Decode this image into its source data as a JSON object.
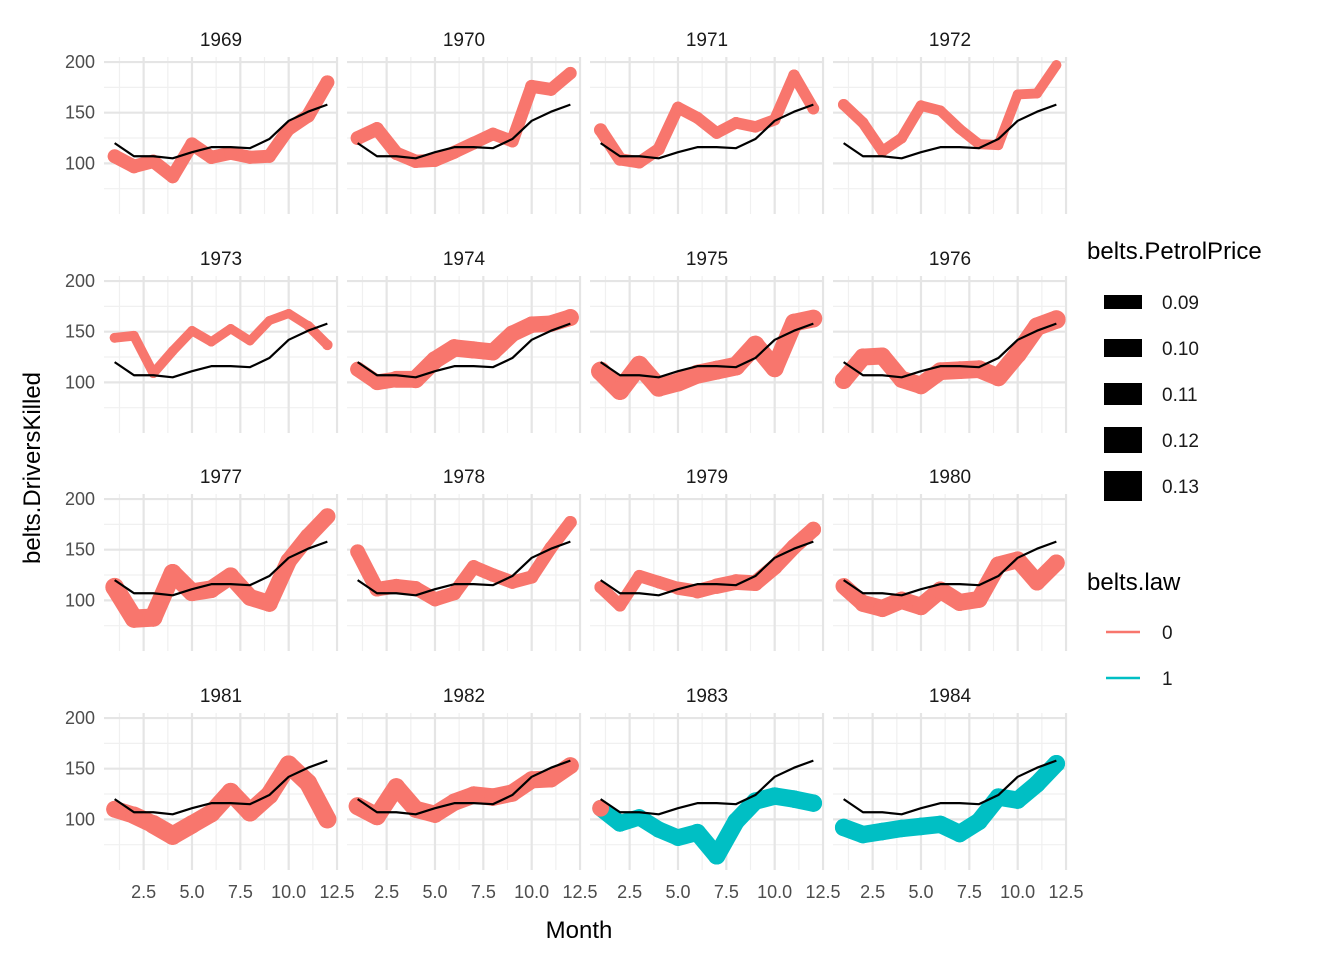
{
  "chart_data": {
    "type": "line",
    "facet_by": "year",
    "xlabel": "Month",
    "ylabel": "belts.DriversKilled",
    "xlim": [
      0.45,
      12.55
    ],
    "ylim": [
      50,
      205
    ],
    "x_ticks": [
      2.5,
      5.0,
      7.5,
      10.0,
      12.5
    ],
    "x_tick_labels": [
      "2.5",
      "5.0",
      "7.5",
      "10.0",
      "12.5"
    ],
    "y_ticks": [
      100,
      150,
      200
    ],
    "grid": true,
    "ncol": 4,
    "reference_line": {
      "description": "monthly mean",
      "color": "#000000",
      "values": [
        120,
        107,
        107,
        105,
        111,
        116,
        116,
        115,
        124,
        142,
        151,
        158
      ]
    },
    "legends": [
      {
        "title": "belts.PetrolPrice",
        "type": "linewidth",
        "entries": [
          "0.09",
          "0.10",
          "0.11",
          "0.12",
          "0.13"
        ]
      },
      {
        "title": "belts.law",
        "type": "color",
        "entries": [
          {
            "label": "0",
            "color": "#F8766D"
          },
          {
            "label": "1",
            "color": "#00BFC4"
          }
        ]
      }
    ],
    "panels": [
      {
        "year": "1969",
        "law": [
          0,
          0,
          0,
          0,
          0,
          0,
          0,
          0,
          0,
          0,
          0,
          0
        ],
        "values": [
          107,
          97,
          102,
          87,
          119,
          106,
          110,
          106,
          107,
          134,
          147,
          180
        ],
        "petrol": [
          0.102,
          0.101,
          0.1,
          0.1,
          0.1,
          0.1,
          0.099,
          0.099,
          0.099,
          0.099,
          0.102,
          0.102
        ]
      },
      {
        "year": "1970",
        "law": [
          0,
          0,
          0,
          0,
          0,
          0,
          0,
          0,
          0,
          0,
          0,
          0
        ],
        "values": [
          125,
          134,
          110,
          102,
          103,
          111,
          120,
          129,
          122,
          176,
          173,
          189
        ],
        "petrol": [
          0.102,
          0.101,
          0.1,
          0.1,
          0.099,
          0.099,
          0.098,
          0.097,
          0.097,
          0.099,
          0.098,
          0.097
        ]
      },
      {
        "year": "1971",
        "law": [
          0,
          0,
          0,
          0,
          0,
          0,
          0,
          0,
          0,
          0,
          0,
          0
        ],
        "values": [
          133,
          104,
          101,
          114,
          155,
          145,
          130,
          140,
          136,
          143,
          187,
          154
        ],
        "petrol": [
          0.1,
          0.097,
          0.096,
          0.096,
          0.095,
          0.095,
          0.094,
          0.094,
          0.093,
          0.093,
          0.093,
          0.094
        ]
      },
      {
        "year": "1972",
        "law": [
          0,
          0,
          0,
          0,
          0,
          0,
          0,
          0,
          0,
          0,
          0,
          0
        ],
        "values": [
          158,
          140,
          112,
          125,
          157,
          152,
          134,
          119,
          118,
          168,
          169,
          197
        ],
        "petrol": [
          0.093,
          0.092,
          0.091,
          0.091,
          0.09,
          0.09,
          0.089,
          0.089,
          0.088,
          0.088,
          0.088,
          0.088
        ]
      },
      {
        "year": "1973",
        "law": [
          0,
          0,
          0,
          0,
          0,
          0,
          0,
          0,
          0,
          0,
          0,
          0
        ],
        "values": [
          144,
          146,
          109,
          131,
          151,
          140,
          153,
          141,
          161,
          168,
          156,
          137
        ],
        "petrol": [
          0.088,
          0.087,
          0.087,
          0.087,
          0.086,
          0.086,
          0.086,
          0.085,
          0.085,
          0.085,
          0.085,
          0.09
        ]
      },
      {
        "year": "1974",
        "law": [
          0,
          0,
          0,
          0,
          0,
          0,
          0,
          0,
          0,
          0,
          0,
          0
        ],
        "values": [
          113,
          100,
          103,
          103,
          122,
          134,
          132,
          130,
          148,
          157,
          158,
          164
        ],
        "petrol": [
          0.105,
          0.106,
          0.11,
          0.115,
          0.115,
          0.114,
          0.113,
          0.112,
          0.111,
          0.11,
          0.11,
          0.113
        ]
      },
      {
        "year": "1975",
        "law": [
          0,
          0,
          0,
          0,
          0,
          0,
          0,
          0,
          0,
          0,
          0,
          0
        ],
        "values": [
          111,
          92,
          117,
          95,
          100,
          108,
          112,
          116,
          137,
          114,
          159,
          163
        ],
        "petrol": [
          0.12,
          0.119,
          0.118,
          0.118,
          0.116,
          0.119,
          0.119,
          0.118,
          0.117,
          0.116,
          0.115,
          0.115
        ]
      },
      {
        "year": "1976",
        "law": [
          0,
          0,
          0,
          0,
          0,
          0,
          0,
          0,
          0,
          0,
          0,
          0
        ],
        "values": [
          102,
          125,
          126,
          103,
          97,
          111,
          112,
          113,
          105,
          128,
          155,
          162
        ],
        "petrol": [
          0.114,
          0.113,
          0.112,
          0.112,
          0.115,
          0.115,
          0.115,
          0.115,
          0.115,
          0.117,
          0.117,
          0.118
        ]
      },
      {
        "year": "1977",
        "law": [
          0,
          0,
          0,
          0,
          0,
          0,
          0,
          0,
          0,
          0,
          0,
          0
        ],
        "values": [
          113,
          82,
          83,
          127,
          108,
          111,
          124,
          103,
          97,
          139,
          163,
          183
        ],
        "petrol": [
          0.118,
          0.117,
          0.117,
          0.116,
          0.115,
          0.115,
          0.113,
          0.112,
          0.112,
          0.111,
          0.11,
          0.109
        ]
      },
      {
        "year": "1978",
        "law": [
          0,
          0,
          0,
          0,
          0,
          0,
          0,
          0,
          0,
          0,
          0,
          0
        ],
        "values": [
          148,
          111,
          114,
          112,
          101,
          107,
          133,
          125,
          118,
          123,
          152,
          177
        ],
        "petrol": [
          0.105,
          0.104,
          0.104,
          0.103,
          0.102,
          0.102,
          0.101,
          0.1,
          0.1,
          0.099,
          0.098,
          0.098
        ]
      },
      {
        "year": "1979",
        "law": [
          0,
          0,
          0,
          0,
          0,
          0,
          0,
          0,
          0,
          0,
          0,
          0
        ],
        "values": [
          113,
          95,
          124,
          118,
          112,
          109,
          114,
          118,
          117,
          133,
          153,
          170
        ],
        "petrol": [
          0.097,
          0.096,
          0.096,
          0.097,
          0.097,
          0.102,
          0.106,
          0.108,
          0.108,
          0.108,
          0.107,
          0.107
        ]
      },
      {
        "year": "1980",
        "law": [
          0,
          0,
          0,
          0,
          0,
          0,
          0,
          0,
          0,
          0,
          0,
          0
        ],
        "values": [
          114,
          97,
          92,
          100,
          94,
          110,
          98,
          101,
          135,
          140,
          118,
          137
        ],
        "petrol": [
          0.108,
          0.112,
          0.113,
          0.114,
          0.114,
          0.114,
          0.113,
          0.112,
          0.112,
          0.112,
          0.111,
          0.112
        ]
      },
      {
        "year": "1981",
        "law": [
          0,
          0,
          0,
          0,
          0,
          0,
          0,
          0,
          0,
          0,
          0,
          0
        ],
        "values": [
          110,
          104,
          95,
          84,
          95,
          106,
          127,
          107,
          124,
          154,
          136,
          100
        ],
        "petrol": [
          0.112,
          0.112,
          0.118,
          0.118,
          0.117,
          0.116,
          0.117,
          0.117,
          0.118,
          0.117,
          0.117,
          0.116
        ]
      },
      {
        "year": "1982",
        "law": [
          0,
          0,
          0,
          0,
          0,
          0,
          0,
          0,
          0,
          0,
          0,
          0
        ],
        "values": [
          113,
          103,
          132,
          110,
          105,
          117,
          124,
          122,
          126,
          139,
          140,
          153
        ],
        "petrol": [
          0.116,
          0.115,
          0.114,
          0.113,
          0.113,
          0.113,
          0.114,
          0.114,
          0.114,
          0.113,
          0.113,
          0.112
        ]
      },
      {
        "year": "1983",
        "law": [
          0,
          1,
          1,
          1,
          1,
          1,
          1,
          1,
          1,
          1,
          1,
          1
        ],
        "values": [
          111,
          96,
          102,
          90,
          82,
          87,
          64,
          98,
          118,
          123,
          120,
          116
        ],
        "petrol": [
          0.112,
          0.111,
          0.11,
          0.11,
          0.11,
          0.114,
          0.114,
          0.114,
          0.114,
          0.114,
          0.114,
          0.114
        ]
      },
      {
        "year": "1984",
        "law": [
          1,
          1,
          1,
          1,
          1,
          1,
          1,
          1,
          1,
          1,
          1,
          1
        ],
        "values": [
          92,
          85,
          88,
          91,
          93,
          95,
          86,
          98,
          122,
          119,
          135,
          155
        ],
        "petrol": [
          0.114,
          0.114,
          0.114,
          0.114,
          0.114,
          0.114,
          0.114,
          0.114,
          0.114,
          0.114,
          0.114,
          0.114
        ]
      }
    ]
  }
}
